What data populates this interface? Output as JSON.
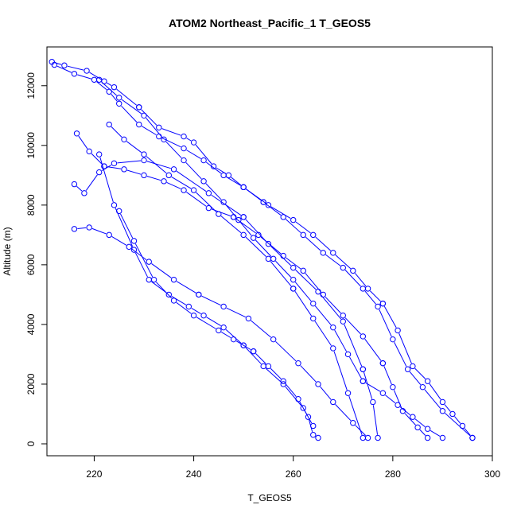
{
  "chart_data": {
    "type": "line",
    "title": "ATOM2 Northeast_Pacific_1 T_GEOS5",
    "xlabel": "T_GEOS5",
    "ylabel": "Altitude (m)",
    "xlim": [
      210.5,
      300
    ],
    "ylim": [
      -400,
      13300
    ],
    "xticks": [
      220,
      240,
      260,
      280,
      300
    ],
    "yticks": [
      0,
      2000,
      4000,
      6000,
      8000,
      10000,
      12000
    ],
    "grid": false,
    "legend": "none",
    "marker": "open-circle",
    "series": [
      {
        "x": [
          211.5,
          214,
          218.5,
          222,
          224,
          229
        ],
        "y": [
          12800,
          12680,
          12500,
          12150,
          11950,
          11280
        ]
      },
      {
        "x": [
          229,
          233,
          238,
          240,
          244,
          247,
          250
        ],
        "y": [
          11280,
          10600,
          10300,
          10100,
          9300,
          9000,
          8600
        ]
      },
      {
        "x": [
          250,
          255,
          260,
          264,
          268,
          272,
          275,
          278
        ],
        "y": [
          8600,
          8000,
          7500,
          7000,
          6400,
          5800,
          5200,
          4700
        ]
      },
      {
        "x": [
          278,
          281,
          284,
          287,
          290,
          292,
          294,
          296
        ],
        "y": [
          4700,
          3800,
          2600,
          2100,
          1400,
          1000,
          600,
          200
        ]
      },
      {
        "x": [
          212,
          216,
          220,
          223,
          225,
          229,
          233,
          238,
          242,
          246,
          250,
          254
        ],
        "y": [
          12700,
          12400,
          12200,
          11800,
          11400,
          10700,
          10300,
          9900,
          9500,
          9000,
          8600,
          8100
        ]
      },
      {
        "x": [
          254,
          258,
          262,
          266,
          270,
          274,
          277,
          280,
          283,
          286,
          290,
          296
        ],
        "y": [
          8100,
          7600,
          7000,
          6400,
          5900,
          5200,
          4600,
          3500,
          2500,
          1900,
          1100,
          200
        ]
      },
      {
        "x": [
          216.5,
          219,
          222
        ],
        "y": [
          10400,
          9800,
          9300
        ]
      },
      {
        "x": [
          222,
          226,
          230,
          234,
          238,
          243,
          248
        ],
        "y": [
          9300,
          9200,
          9000,
          8800,
          8500,
          7900,
          7600
        ]
      },
      {
        "x": [
          248,
          253,
          258,
          262,
          266,
          270,
          274,
          278
        ],
        "y": [
          7600,
          7000,
          6300,
          5800,
          5000,
          4300,
          3600,
          2700
        ]
      },
      {
        "x": [
          278,
          280,
          282,
          285,
          287
        ],
        "y": [
          2700,
          1900,
          1100,
          550,
          200
        ]
      },
      {
        "x": [
          216,
          218,
          221,
          224,
          230,
          236,
          243,
          250
        ],
        "y": [
          8700,
          8400,
          9100,
          9400,
          9500,
          9200,
          8400,
          7600
        ]
      },
      {
        "x": [
          250,
          255,
          260,
          265,
          270,
          274
        ],
        "y": [
          7600,
          6700,
          5900,
          5100,
          4100,
          2500
        ]
      },
      {
        "x": [
          274,
          276,
          277
        ],
        "y": [
          2500,
          1400,
          200
        ]
      },
      {
        "x": [
          223,
          226,
          230,
          235,
          240,
          245,
          250,
          255,
          260
        ],
        "y": [
          10700,
          10200,
          9700,
          9000,
          8500,
          7700,
          7000,
          6200,
          5200
        ]
      },
      {
        "x": [
          260,
          264,
          268,
          271,
          274
        ],
        "y": [
          5200,
          4200,
          3200,
          1700,
          200
        ]
      },
      {
        "x": [
          216,
          219,
          223,
          227,
          231,
          236,
          241
        ],
        "y": [
          7200,
          7250,
          7000,
          6600,
          6100,
          5500,
          5000
        ]
      },
      {
        "x": [
          241,
          246,
          251,
          256,
          261,
          265,
          268,
          272,
          275
        ],
        "y": [
          5000,
          4600,
          4200,
          3500,
          2700,
          2000,
          1400,
          700,
          200
        ]
      },
      {
        "x": [
          221,
          224,
          228,
          231,
          235,
          239,
          242,
          246,
          250
        ],
        "y": [
          9700,
          8000,
          6500,
          5500,
          5000,
          4600,
          4300,
          3900,
          3300
        ]
      },
      {
        "x": [
          250,
          254,
          258,
          262,
          264
        ],
        "y": [
          3300,
          2600,
          2000,
          1200,
          600
        ]
      },
      {
        "x": [
          225,
          228,
          232,
          236,
          240,
          245,
          248,
          252
        ],
        "y": [
          7800,
          6800,
          5500,
          4800,
          4300,
          3800,
          3500,
          3100
        ]
      },
      {
        "x": [
          252,
          255,
          258,
          261,
          263,
          264,
          265
        ],
        "y": [
          3100,
          2600,
          2100,
          1500,
          900,
          300,
          200
        ]
      },
      {
        "x": [
          221,
          225,
          230,
          234,
          238,
          242,
          246,
          249,
          252,
          256,
          260,
          264,
          268,
          271,
          274
        ],
        "y": [
          12200,
          11600,
          11000,
          10200,
          9500,
          8800,
          8100,
          7500,
          6900,
          6200,
          5500,
          4700,
          3900,
          3000,
          2100
        ]
      },
      {
        "x": [
          274,
          278,
          281,
          284,
          287,
          290
        ],
        "y": [
          2100,
          1700,
          1300,
          900,
          500,
          200
        ]
      }
    ]
  }
}
